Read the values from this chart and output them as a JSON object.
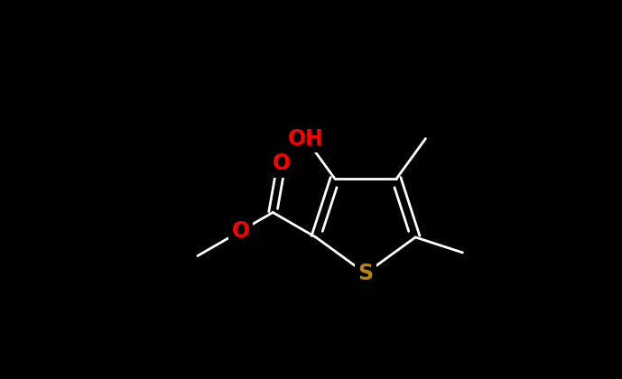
{
  "background_color": "#000000",
  "bond_color": "#ffffff",
  "O_color": "#ff0000",
  "S_color": "#b8860b",
  "figsize": [
    6.89,
    4.2
  ],
  "dpi": 100,
  "lw": 2.0,
  "xlim": [
    0,
    689
  ],
  "ylim": [
    0,
    420
  ]
}
